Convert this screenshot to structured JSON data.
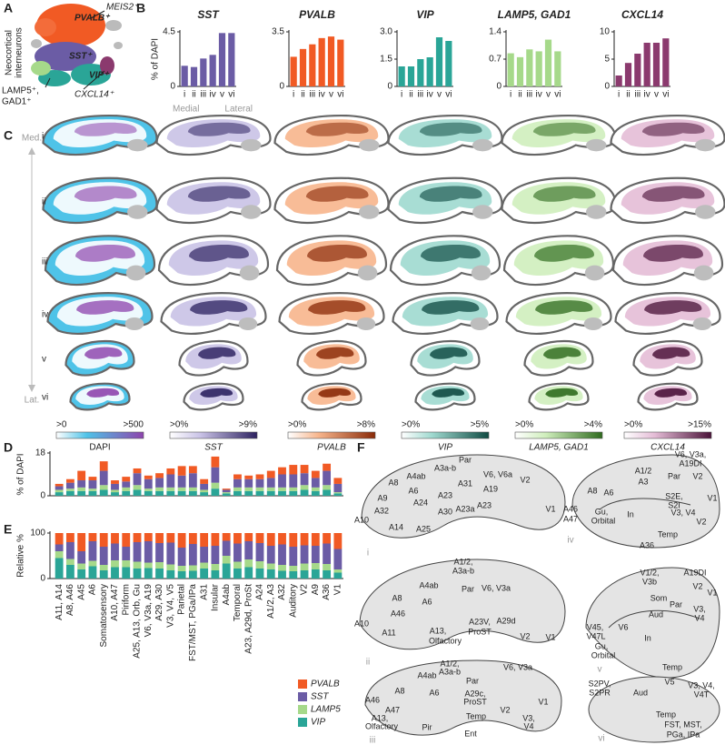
{
  "panel_labels": [
    "A",
    "B",
    "C",
    "D",
    "E",
    "F"
  ],
  "panel_a": {
    "title_lines": [
      "Neocortical",
      "interneurons"
    ],
    "clusters": [
      "MEIS2⁺",
      "PVALB⁺",
      "SST⁺",
      "VIP⁺",
      "CXCL14⁺"
    ],
    "lamp5_lines": [
      "LAMP5⁺,",
      "GAD1⁺"
    ]
  },
  "chart_data": [
    {
      "type": "bar",
      "title": "SST",
      "ylabel": "% of DAPI",
      "xnotes": [
        "Medial",
        "Lateral"
      ],
      "categories": [
        "i",
        "ii",
        "iii",
        "iv",
        "v",
        "vi"
      ],
      "values": [
        1.7,
        1.6,
        2.3,
        2.6,
        4.4,
        4.4
      ],
      "color": "#6b5ca5",
      "ylim": [
        0,
        4.5
      ],
      "yticks": [
        0,
        4.5
      ]
    },
    {
      "type": "bar",
      "title": "PVALB",
      "categories": [
        "i",
        "ii",
        "iii",
        "iv",
        "v",
        "vi"
      ],
      "values": [
        1.9,
        2.4,
        2.7,
        3.1,
        3.2,
        3.0
      ],
      "color": "#f15a24",
      "ylim": [
        0,
        3.5
      ],
      "yticks": [
        0,
        3.5
      ]
    },
    {
      "type": "bar",
      "title": "VIP",
      "categories": [
        "i",
        "ii",
        "iii",
        "iv",
        "v",
        "vi"
      ],
      "values": [
        1.1,
        1.1,
        1.5,
        1.6,
        2.7,
        2.5
      ],
      "color": "#2aa597",
      "ylim": [
        0,
        3
      ],
      "yticks": [
        0,
        1.5,
        {
          "value": 3,
          "label": "3.0"
        }
      ]
    },
    {
      "type": "bar",
      "title": "LAMP5, GAD1",
      "categories": [
        "i",
        "ii",
        "iii",
        "iv",
        "v",
        "vi"
      ],
      "values": [
        0.85,
        0.75,
        0.95,
        0.9,
        1.2,
        0.9
      ],
      "color": "#a6d98a",
      "ylim": [
        0,
        1.4
      ],
      "yticks": [
        0,
        0.7,
        1.4
      ]
    },
    {
      "type": "bar",
      "title": "CXCL14",
      "categories": [
        "i",
        "ii",
        "iii",
        "iv",
        "v",
        "vi"
      ],
      "values": [
        2,
        4.3,
        6,
        8,
        8,
        8.8
      ],
      "color": "#8b3a6e",
      "ylim": [
        0,
        10
      ],
      "yticks": [
        0,
        5,
        10
      ]
    },
    {
      "type": "stacked_bar",
      "ylabel": "% of DAPI",
      "ylim": [
        0,
        18
      ],
      "yticks": [
        0,
        18
      ],
      "series": [
        {
          "color": "#2aa597",
          "values": [
            1.5,
            2,
            2,
            2,
            2.5,
            1.5,
            2,
            2.5,
            2,
            2,
            2,
            2,
            2,
            1.5,
            3,
            1,
            2,
            2,
            2,
            2,
            2,
            2,
            2.5,
            2,
            2.5,
            1
          ]
        },
        {
          "color": "#a6d98a",
          "values": [
            1,
            1,
            1.5,
            1,
            2,
            1,
            1.5,
            2,
            1,
            1.5,
            1.5,
            1.5,
            1.5,
            1,
            2.5,
            0.5,
            1.5,
            1.5,
            1.5,
            1.5,
            1.5,
            1.5,
            2,
            1.5,
            2,
            0.5
          ]
        },
        {
          "color": "#6b5ca5",
          "values": [
            1.5,
            2.5,
            3,
            3.5,
            6,
            2.5,
            2.5,
            5,
            4,
            4,
            5.5,
            5,
            6,
            2.5,
            6.5,
            1,
            3.5,
            3.5,
            3.5,
            4,
            5.5,
            5.5,
            5,
            4,
            6,
            3.5
          ]
        },
        {
          "color": "#f15a24",
          "values": [
            1,
            1.5,
            4,
            1.5,
            4,
            1.5,
            2,
            2,
            1.5,
            2,
            2.5,
            4,
            3,
            2,
            4.5,
            0.5,
            2,
            1.5,
            2,
            3,
            3,
            4,
            3.5,
            3,
            3,
            2.5
          ]
        }
      ]
    },
    {
      "type": "stacked_bar",
      "ylabel": "Relative %",
      "ylim": [
        0,
        100
      ],
      "yticks": [
        0,
        100
      ],
      "legend": "bottom-right",
      "categories": [
        "A11, A14",
        "A8, A46",
        "A45",
        "A6",
        "Somatosensory",
        "A10, A47",
        "Piriform",
        "A25, A13, Orb, Gu",
        "V6, V3a, A19",
        "A29, A30",
        "V3, V4, V5",
        "Parietal",
        "FST/MST, PGa/IPa",
        "A31",
        "Insular",
        "A4ab",
        "Temporal",
        "A23, A29d, ProSt",
        "A24",
        "A1/2, A3",
        "A32",
        "Auditory",
        "V2",
        "A9",
        "A36",
        "V1"
      ],
      "series": [
        {
          "name": "VIP",
          "color": "#2aa597",
          "values": [
            45,
            30,
            20,
            27,
            18,
            25,
            25,
            22,
            23,
            22,
            18,
            16,
            17,
            22,
            18,
            33,
            22,
            25,
            22,
            20,
            17,
            16,
            18,
            20,
            18,
            13
          ]
        },
        {
          "name": "LAMP5",
          "color": "#a6d98a",
          "values": [
            15,
            13,
            13,
            12,
            12,
            15,
            15,
            15,
            12,
            14,
            13,
            12,
            12,
            13,
            14,
            17,
            15,
            17,
            16,
            13,
            13,
            12,
            15,
            14,
            14,
            7
          ]
        },
        {
          "name": "SST",
          "color": "#6b5ca5",
          "values": [
            15,
            37,
            27,
            43,
            40,
            37,
            30,
            43,
            47,
            42,
            48,
            40,
            47,
            35,
            40,
            33,
            40,
            40,
            40,
            39,
            45,
            42,
            40,
            38,
            45,
            45
          ]
        },
        {
          "name": "PVALB",
          "color": "#f15a24",
          "values": [
            25,
            20,
            40,
            18,
            30,
            23,
            30,
            20,
            18,
            22,
            21,
            32,
            24,
            30,
            28,
            17,
            23,
            18,
            22,
            28,
            25,
            30,
            27,
            28,
            23,
            35
          ]
        }
      ]
    }
  ],
  "panel_c": {
    "rows": [
      "i",
      "ii",
      "iii",
      "iv",
      "v",
      "vi"
    ],
    "medial": "Med.",
    "lateral": "Lat.",
    "columns": [
      {
        "name": "DAPI",
        "low": ">0",
        "high": ">500",
        "color": "#8e44ad",
        "light": "#4fc3e8"
      },
      {
        "name": "SST",
        "low": ">0%",
        "high": ">9%",
        "color": "#2d2260",
        "light": "#c9c2e6"
      },
      {
        "name": "PVALB",
        "low": ">0%",
        "high": ">8%",
        "color": "#8a2a08",
        "light": "#f7b58c"
      },
      {
        "name": "VIP",
        "low": ">0%",
        "high": ">5%",
        "color": "#0f4a42",
        "light": "#9fd9cf"
      },
      {
        "name": "LAMP5, GAD1",
        "low": ">0%",
        "high": ">4%",
        "color": "#2f6b1e",
        "light": "#cfeebc"
      },
      {
        "name": "CXCL14",
        "low": ">0%",
        "high": ">15%",
        "color": "#4a1238",
        "light": "#e4bcd6"
      }
    ]
  },
  "panel_f": {
    "diagrams": [
      {
        "label": "i",
        "areas": [
          "Par",
          "A3a-b",
          "V6, V6a",
          "A4ab",
          "A8",
          "A6",
          "A31",
          "A19",
          "V2",
          "A9",
          "A24",
          "A23",
          "A30",
          "A23a",
          "A23",
          "V1",
          "A32",
          "A10",
          "A14",
          "A25"
        ]
      },
      {
        "label": "ii",
        "areas": [
          "A1/2,",
          "A3a-b",
          "A4ab",
          "Par",
          "V6, V3a",
          "A8",
          "A6",
          "A46",
          "A10",
          "A11",
          "A13,",
          "Olfactory",
          "A23V,",
          "ProST",
          "A29d",
          "V2",
          "V1"
        ]
      },
      {
        "label": "iii",
        "areas": [
          "A1/2,",
          "A3a-b",
          "V6, V3a",
          "A4ab",
          "Par",
          "A6",
          "A8",
          "A46",
          "A47",
          "A29c,",
          "ProST",
          "V2",
          "V1",
          "A13,",
          "Olfactory",
          "Pir",
          "Temp",
          "V3,",
          "V4",
          "Ent"
        ]
      },
      {
        "label": "iv",
        "areas": [
          "V6, V3a,",
          "A19DI",
          "A1/2",
          "A3",
          "Par",
          "V2",
          "A8",
          "A6",
          "S2E,",
          "S2I",
          "A46",
          "A47",
          "Gu,",
          "Orbital",
          "In",
          "V3, V4",
          "V1",
          "V2",
          "Temp",
          "A36"
        ]
      },
      {
        "label": "v",
        "areas": [
          "V1/2,",
          "V3b",
          "A19DI",
          "Som",
          "Par",
          "Aud",
          "V2",
          "V1",
          "V45,",
          "V47L",
          "V6",
          "In",
          "V3,",
          "V4",
          "Gu,",
          "Orbital",
          "Temp"
        ]
      },
      {
        "label": "vi",
        "areas": [
          "S2PV,",
          "S2PR",
          "Aud",
          "V5",
          "V3, V4,",
          "V4T",
          "Temp",
          "FST, MST,",
          "PGa, IPa"
        ]
      }
    ]
  }
}
